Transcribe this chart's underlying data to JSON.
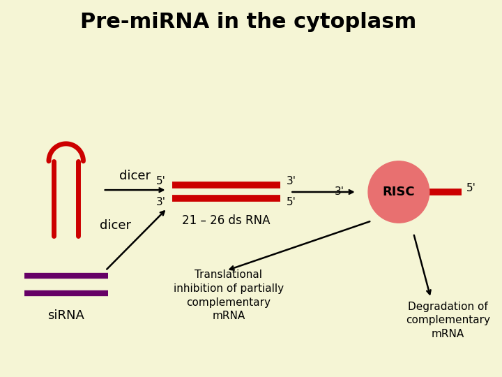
{
  "title": "Pre-miRNA in the cytoplasm",
  "bg_color": "#f5f5d5",
  "red_color": "#cc0000",
  "purple_color": "#660066",
  "risc_color": "#e87070",
  "risc_text": "RISC",
  "arrow_color": "#000000",
  "text_color": "#000000",
  "dicer_text": "dicer",
  "sirna_text": "siRNA",
  "ds_rna_text": "21 – 26 ds RNA",
  "trans_inhib_text": "Translational\ninhibition of partially\ncomplementary\nmRNA",
  "degrad_text": "Degradation of\ncomplementary\nmRNA"
}
